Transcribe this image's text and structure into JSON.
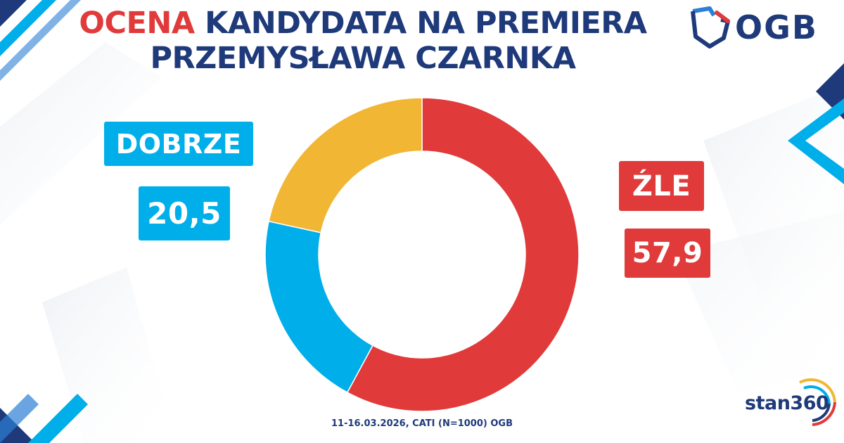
{
  "header": {
    "title_accent": "OCENA",
    "title_rest": " KANDYDATA NA PREMIERA",
    "title_line2": "PRZEMYSŁAWA CZARNKA"
  },
  "logos": {
    "ogb": "OGB",
    "stan360": "stan360"
  },
  "labels": {
    "good_label": "DOBRZE",
    "good_value": "20,5",
    "bad_label": "ŹLE",
    "bad_value": "57,9"
  },
  "footnote": "11-16.03.2026, CATI (N=1000) OGB",
  "colors": {
    "good": "#00aeea",
    "bad": "#e03a3a",
    "undecided": "#f2b635",
    "navy": "#1f3a7a"
  },
  "chart_data": {
    "type": "pie",
    "donut": true,
    "categories": [
      "ŹLE",
      "DOBRZE",
      ""
    ],
    "values": [
      57.9,
      20.5,
      21.6
    ],
    "colors": [
      "#e03a3a",
      "#00aeea",
      "#f2b635"
    ]
  }
}
